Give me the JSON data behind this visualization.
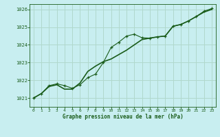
{
  "title": "Graphe pression niveau de la mer (hPa)",
  "background_color": "#c8eef0",
  "plot_bg_color": "#c8eef0",
  "grid_color": "#b0d8cc",
  "line_color": "#1a5c1a",
  "xlim": [
    -0.5,
    23.5
  ],
  "ylim": [
    1020.5,
    1026.3
  ],
  "yticks": [
    1021,
    1022,
    1023,
    1024,
    1025,
    1026
  ],
  "xticks": [
    0,
    1,
    2,
    3,
    4,
    5,
    6,
    7,
    8,
    9,
    10,
    11,
    12,
    13,
    14,
    15,
    16,
    17,
    18,
    19,
    20,
    21,
    22,
    23
  ],
  "series1_x": [
    0,
    1,
    2,
    3,
    4,
    5,
    6,
    7,
    8,
    9,
    10,
    11,
    12,
    13,
    14,
    15,
    16,
    17,
    18,
    19,
    20,
    21,
    22,
    23
  ],
  "series1_y": [
    1021.0,
    1021.25,
    1021.7,
    1021.8,
    1021.7,
    1021.55,
    1021.75,
    1022.15,
    1022.35,
    1023.0,
    1023.85,
    1024.15,
    1024.5,
    1024.6,
    1024.4,
    1024.38,
    1024.45,
    1024.5,
    1025.05,
    1025.15,
    1025.35,
    1025.6,
    1025.9,
    1026.05
  ],
  "series2_x": [
    0,
    1,
    2,
    3,
    4,
    5,
    6,
    7,
    8,
    9,
    10,
    11,
    12,
    13,
    14,
    15,
    16,
    17,
    18,
    19,
    20,
    21,
    22,
    23
  ],
  "series2_y": [
    1021.0,
    1021.25,
    1021.65,
    1021.75,
    1021.5,
    1021.5,
    1021.85,
    1022.5,
    1022.8,
    1023.05,
    1023.2,
    1023.45,
    1023.7,
    1024.0,
    1024.3,
    1024.38,
    1024.45,
    1024.5,
    1025.05,
    1025.15,
    1025.35,
    1025.6,
    1025.85,
    1026.0
  ]
}
